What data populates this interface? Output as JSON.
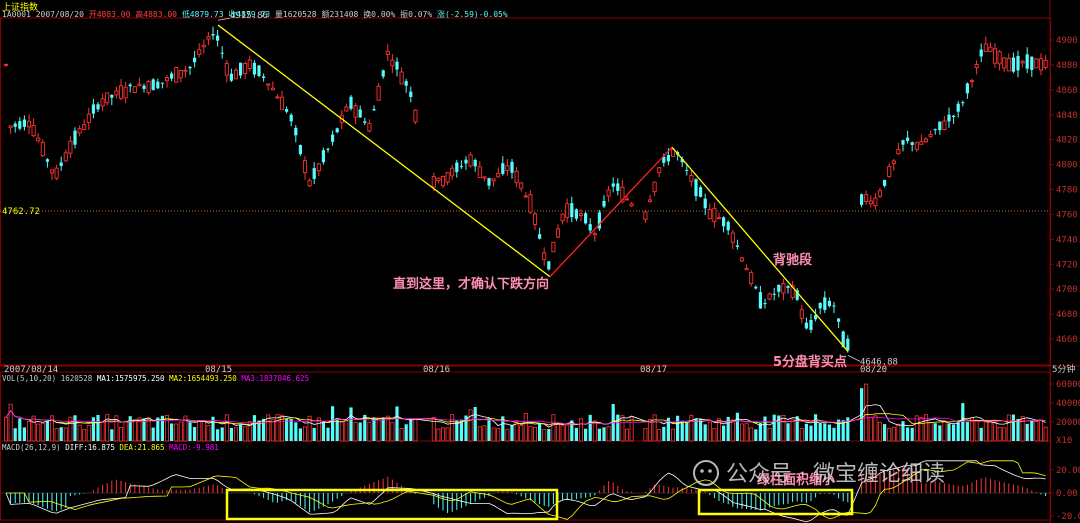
{
  "header": {
    "index_name": "上证指数",
    "quote_line": {
      "code_date": "1A0001 2007/08/20",
      "open": "开4883.00",
      "high": "高4883.00",
      "low": "低4879.73",
      "close": "收4879.73",
      "volume": "量1620528",
      "amount": "额231408",
      "turnover": "换0.00%",
      "amplitude": "振0.07%",
      "change": "涨(-2.59)-0.05%"
    }
  },
  "price_axis": {
    "ticks": [
      "4900.00",
      "4880.00",
      "4860.00",
      "4840.00",
      "4820.00",
      "4800.00",
      "4780.00",
      "4760.00",
      "4740.00",
      "4720.00",
      "4700.00",
      "4680.00",
      "4660.00"
    ],
    "ref_line_label": "4762.72",
    "high_marker": "4915.86",
    "low_marker": "4646.88"
  },
  "date_axis": {
    "labels": [
      "2007/08/14",
      "08/15",
      "08/16",
      "08/17",
      "08/20"
    ],
    "unit": "5分钟"
  },
  "volume_panel": {
    "header": {
      "title": "VOL(5,10,20)",
      "value": "1620528",
      "ma1": "MA1:1575975.250",
      "ma2": "MA2:1654493.250",
      "ma3": "MA3:1837846.625"
    },
    "ticks": [
      "600000",
      "400000",
      "200000"
    ],
    "unit": "X10"
  },
  "macd_panel": {
    "header": {
      "title": "MACD(26,12,9)",
      "diff": "DIFF:16.875",
      "dea": "DEA:21.865",
      "macd": "MACD:-9.981"
    },
    "ticks": [
      "20.00",
      "0.00",
      "-20.00"
    ]
  },
  "annotations": {
    "confirm_down": "直到这里，才确认下跌方向",
    "divergence_segment": "背驰段",
    "buy_point": "5分盘背买点",
    "green_area": "绿柱面积缩小"
  },
  "watermark": "公众号 · 微宝缠论细读",
  "colors": {
    "up_candle": "#ff3232",
    "down_candle": "#54fcfc",
    "trend_line_down": "#ffff00",
    "trend_line_up": "#ff2020",
    "ma1": "#ffffff",
    "ma2": "#ffff00",
    "ma3": "#ff00ff",
    "highlight_box": "#ffff00",
    "annotation": "#ff8fb0",
    "ref_line": "#c07030"
  },
  "chart_data": {
    "type": "candlestick",
    "interval": "5分钟",
    "price_ylim": [
      4640,
      4920
    ],
    "reference_level": 4762.72,
    "marked_high": 4915.86,
    "marked_low": 4646.88,
    "trend_lines": [
      {
        "color": "yellow",
        "from": {
          "date": "08/15",
          "price": 4915.86
        },
        "to": {
          "date": "08/16",
          "price": 4712
        }
      },
      {
        "color": "red",
        "from": {
          "date": "08/16",
          "price": 4712
        },
        "to": {
          "date": "08/17",
          "price": 4814
        }
      },
      {
        "color": "yellow",
        "from": {
          "date": "08/17",
          "price": 4814
        },
        "to": {
          "date": "08/17",
          "price": 4648
        }
      }
    ],
    "volume_ylim": [
      0,
      600000
    ],
    "macd_ylim": [
      -30,
      30
    ],
    "highlighted_regions": [
      "08/15-08/16 MACD green bars",
      "08/17 MACD green bars"
    ]
  }
}
